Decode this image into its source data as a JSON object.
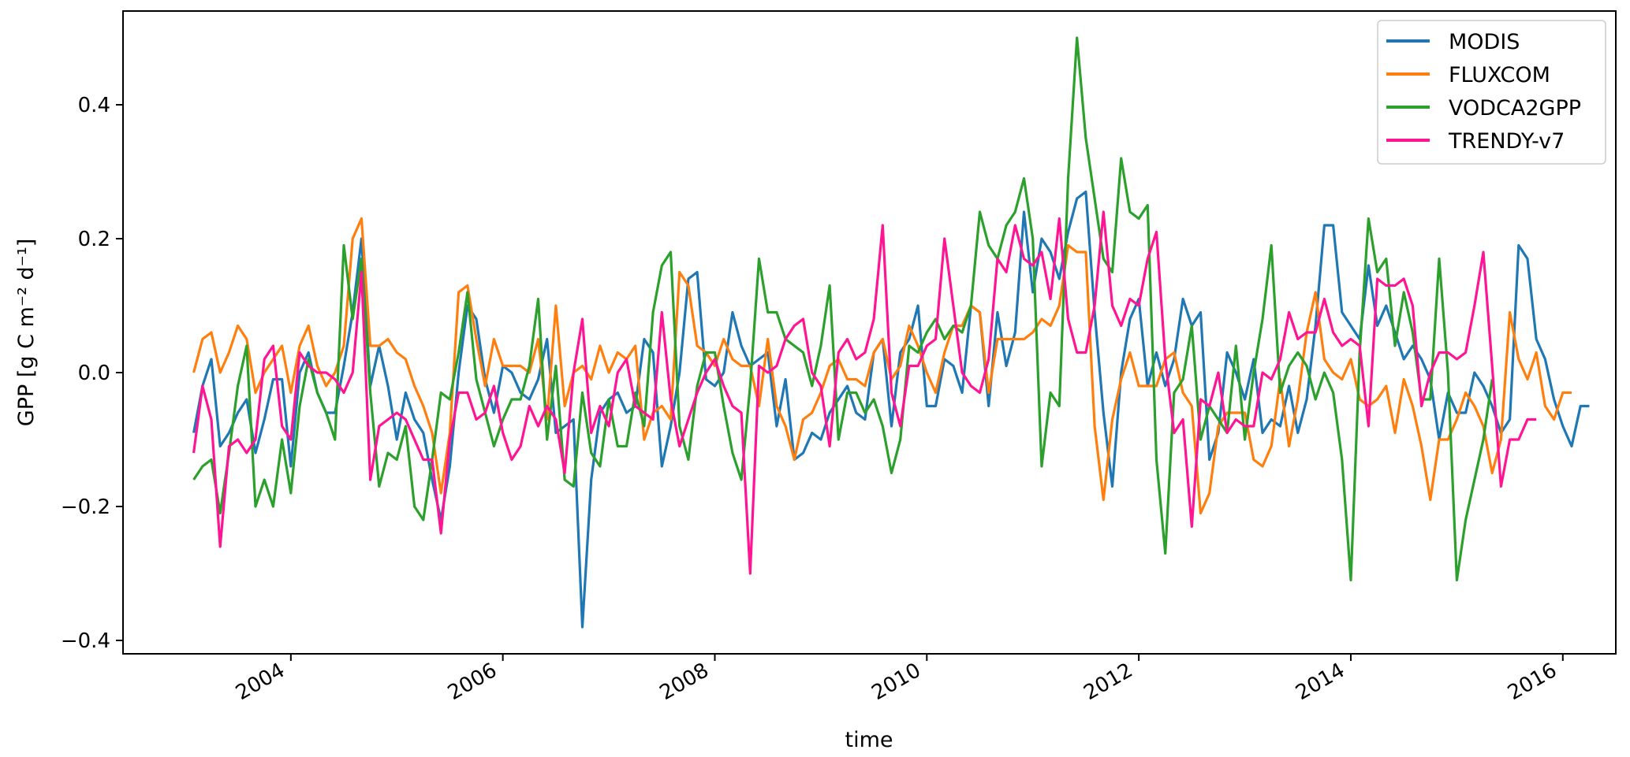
{
  "chart_data": {
    "type": "line",
    "title": "",
    "xlabel": "time",
    "ylabel": "GPP [g C m⁻² d⁻¹]",
    "x_start": "2003-02",
    "x_freq": "monthly",
    "xlim": [
      "2002-06",
      "2016-07"
    ],
    "ylim": [
      -0.42,
      0.54
    ],
    "xticks": [
      "2004",
      "2006",
      "2008",
      "2010",
      "2012",
      "2014",
      "2016"
    ],
    "yticks": [
      "−0.4",
      "−0.2",
      "0.0",
      "0.2",
      "0.4"
    ],
    "grid": false,
    "legend_position": "top-right",
    "series": [
      {
        "name": "MODIS",
        "color": "#1f77b4",
        "values": [
          -0.09,
          -0.02,
          0.02,
          -0.11,
          -0.09,
          -0.06,
          -0.04,
          -0.12,
          -0.07,
          -0.01,
          -0.01,
          -0.14,
          0.0,
          0.03,
          -0.03,
          -0.06,
          -0.06,
          0.01,
          0.09,
          0.2,
          -0.02,
          0.04,
          -0.02,
          -0.1,
          -0.03,
          -0.07,
          -0.09,
          -0.16,
          -0.22,
          -0.14,
          0.0,
          0.1,
          0.08,
          -0.01,
          -0.06,
          0.01,
          0.0,
          -0.03,
          -0.04,
          -0.01,
          0.05,
          -0.09,
          -0.08,
          -0.07,
          -0.38,
          -0.16,
          -0.06,
          -0.04,
          -0.03,
          -0.06,
          -0.05,
          0.05,
          0.03,
          -0.14,
          -0.08,
          0.0,
          0.14,
          0.15,
          -0.01,
          -0.02,
          0.0,
          0.09,
          0.04,
          0.01,
          0.02,
          0.03,
          -0.08,
          -0.01,
          -0.13,
          -0.12,
          -0.09,
          -0.1,
          -0.06,
          -0.04,
          -0.02,
          -0.06,
          -0.07,
          0.03,
          0.05,
          -0.08,
          0.03,
          0.05,
          0.1,
          -0.05,
          -0.05,
          0.02,
          0.01,
          -0.03,
          0.1,
          0.09,
          -0.05,
          0.09,
          0.01,
          0.06,
          0.24,
          0.12,
          0.2,
          0.18,
          0.14,
          0.21,
          0.26,
          0.27,
          0.09,
          -0.06,
          -0.17,
          0.0,
          0.08,
          0.11,
          -0.02,
          0.03,
          -0.02,
          0.02,
          0.11,
          0.07,
          0.09,
          -0.13,
          -0.09,
          0.03,
          0.0,
          -0.04,
          0.02,
          -0.09,
          -0.07,
          -0.08,
          -0.02,
          -0.09,
          -0.04,
          0.07,
          0.22,
          0.22,
          0.09,
          0.07,
          0.05,
          0.16,
          0.07,
          0.1,
          0.06,
          0.02,
          0.04,
          0.02,
          -0.01,
          -0.1,
          -0.03,
          -0.06,
          -0.06,
          0.0,
          -0.02,
          -0.05,
          -0.09,
          -0.07,
          0.19,
          0.17,
          0.05,
          0.02,
          -0.04,
          -0.08,
          -0.11,
          -0.05,
          -0.05
        ]
      },
      {
        "name": "FLUXCOM",
        "color": "#ff7f0e",
        "values": [
          0.0,
          0.05,
          0.06,
          0.0,
          0.03,
          0.07,
          0.05,
          -0.03,
          0.0,
          0.02,
          0.04,
          -0.03,
          0.04,
          0.07,
          0.01,
          -0.02,
          0.0,
          0.04,
          0.2,
          0.23,
          0.04,
          0.04,
          0.05,
          0.03,
          0.02,
          -0.02,
          -0.05,
          -0.09,
          -0.18,
          -0.09,
          0.12,
          0.13,
          0.05,
          -0.02,
          0.05,
          0.01,
          0.01,
          0.01,
          0.0,
          0.05,
          -0.07,
          0.1,
          -0.05,
          0.0,
          0.01,
          -0.01,
          0.04,
          0.0,
          0.03,
          0.02,
          0.04,
          -0.1,
          -0.06,
          -0.05,
          -0.07,
          0.15,
          0.13,
          0.04,
          0.03,
          0.01,
          0.05,
          0.02,
          0.01,
          0.01,
          -0.05,
          0.05,
          -0.05,
          -0.08,
          -0.13,
          -0.07,
          -0.06,
          -0.03,
          0.01,
          0.02,
          -0.01,
          -0.01,
          -0.02,
          0.03,
          0.05,
          -0.01,
          0.01,
          0.07,
          0.04,
          0.0,
          -0.03,
          0.03,
          0.07,
          0.07,
          0.1,
          0.09,
          -0.03,
          0.05,
          0.05,
          0.05,
          0.05,
          0.06,
          0.08,
          0.07,
          0.1,
          0.19,
          0.18,
          0.18,
          -0.08,
          -0.19,
          -0.07,
          -0.01,
          0.03,
          -0.02,
          -0.02,
          -0.02,
          0.02,
          0.03,
          -0.03,
          -0.05,
          -0.21,
          -0.18,
          -0.08,
          -0.06,
          -0.06,
          -0.06,
          -0.13,
          -0.14,
          -0.11,
          -0.01,
          -0.11,
          -0.04,
          0.06,
          0.12,
          0.02,
          0.0,
          -0.01,
          0.02,
          -0.04,
          -0.05,
          -0.04,
          -0.02,
          -0.09,
          -0.01,
          -0.05,
          -0.11,
          -0.19,
          -0.1,
          -0.1,
          -0.07,
          -0.03,
          -0.05,
          -0.08,
          -0.15,
          -0.1,
          0.09,
          0.02,
          -0.01,
          0.03,
          -0.05,
          -0.07,
          -0.03,
          -0.03
        ]
      },
      {
        "name": "VODCA2GPP",
        "color": "#2ca02c",
        "values": [
          -0.16,
          -0.14,
          -0.13,
          -0.21,
          -0.12,
          -0.02,
          0.04,
          -0.2,
          -0.16,
          -0.2,
          -0.1,
          -0.18,
          -0.05,
          0.02,
          -0.03,
          -0.06,
          -0.1,
          0.19,
          0.08,
          0.17,
          -0.03,
          -0.17,
          -0.12,
          -0.13,
          -0.08,
          -0.2,
          -0.22,
          -0.13,
          -0.03,
          -0.04,
          0.03,
          0.12,
          -0.01,
          -0.06,
          -0.11,
          -0.07,
          -0.04,
          -0.04,
          0.01,
          0.11,
          -0.1,
          0.01,
          -0.16,
          -0.17,
          -0.03,
          -0.12,
          -0.14,
          -0.04,
          -0.11,
          -0.11,
          -0.03,
          -0.08,
          0.09,
          0.16,
          0.18,
          -0.08,
          -0.13,
          -0.02,
          0.03,
          0.03,
          -0.05,
          -0.12,
          -0.16,
          -0.02,
          0.17,
          0.09,
          0.09,
          0.05,
          0.04,
          0.03,
          -0.02,
          0.04,
          0.13,
          -0.1,
          -0.03,
          -0.03,
          -0.06,
          -0.04,
          -0.08,
          -0.15,
          -0.1,
          0.04,
          0.03,
          0.06,
          0.08,
          0.05,
          0.07,
          0.06,
          0.1,
          0.24,
          0.19,
          0.17,
          0.22,
          0.24,
          0.29,
          0.2,
          -0.14,
          -0.03,
          -0.05,
          0.29,
          0.5,
          0.35,
          0.26,
          0.17,
          0.15,
          0.32,
          0.24,
          0.23,
          0.25,
          -0.13,
          -0.27,
          -0.03,
          -0.01,
          0.07,
          -0.1,
          -0.05,
          -0.07,
          -0.09,
          0.04,
          -0.1,
          0.0,
          0.08,
          0.19,
          -0.03,
          0.01,
          0.03,
          0.01,
          -0.04,
          0.0,
          -0.03,
          -0.13,
          -0.31,
          0.03,
          0.23,
          0.15,
          0.17,
          0.04,
          0.12,
          0.06,
          -0.04,
          -0.04,
          0.17,
          0.0,
          -0.31,
          -0.22,
          -0.16,
          -0.1,
          -0.01
        ]
      },
      {
        "name": "TRENDY-v7",
        "color": "#ff1493",
        "values": [
          -0.12,
          -0.02,
          -0.07,
          -0.26,
          -0.11,
          -0.1,
          -0.12,
          -0.1,
          0.02,
          0.04,
          -0.08,
          -0.1,
          0.03,
          0.01,
          0.0,
          0.0,
          -0.01,
          -0.03,
          0.0,
          0.15,
          -0.16,
          -0.08,
          -0.07,
          -0.06,
          -0.07,
          -0.1,
          -0.13,
          -0.13,
          -0.24,
          -0.1,
          -0.03,
          -0.03,
          -0.07,
          -0.06,
          -0.02,
          -0.09,
          -0.13,
          -0.11,
          -0.05,
          -0.08,
          -0.05,
          -0.07,
          -0.15,
          0.0,
          0.08,
          -0.09,
          -0.05,
          -0.08,
          0.0,
          0.02,
          -0.05,
          -0.06,
          -0.07,
          0.09,
          -0.04,
          -0.11,
          -0.07,
          -0.03,
          0.0,
          0.02,
          -0.02,
          -0.05,
          -0.06,
          -0.3,
          0.01,
          0.0,
          0.01,
          0.05,
          0.07,
          0.08,
          0.0,
          -0.02,
          -0.11,
          0.03,
          0.05,
          0.02,
          0.03,
          0.08,
          0.22,
          -0.03,
          -0.08,
          0.01,
          0.01,
          0.04,
          0.05,
          0.2,
          0.1,
          0.0,
          -0.02,
          -0.03,
          0.02,
          0.17,
          0.15,
          0.22,
          0.17,
          0.16,
          0.18,
          0.11,
          0.23,
          0.08,
          0.03,
          0.03,
          0.1,
          0.24,
          0.1,
          0.07,
          0.11,
          0.1,
          0.17,
          0.21,
          0.02,
          -0.09,
          -0.07,
          -0.23,
          -0.04,
          -0.05,
          0.0,
          -0.09,
          -0.07,
          -0.08,
          -0.08,
          0.0,
          -0.01,
          0.02,
          0.09,
          0.05,
          0.06,
          0.06,
          0.11,
          0.06,
          0.04,
          0.05,
          0.04,
          -0.08,
          0.14,
          0.13,
          0.13,
          0.14,
          0.1,
          -0.05,
          0.0,
          0.03,
          0.03,
          0.02,
          0.03,
          0.1,
          0.18,
          0.01,
          -0.17,
          -0.1,
          -0.1,
          -0.07,
          -0.07
        ]
      }
    ]
  }
}
